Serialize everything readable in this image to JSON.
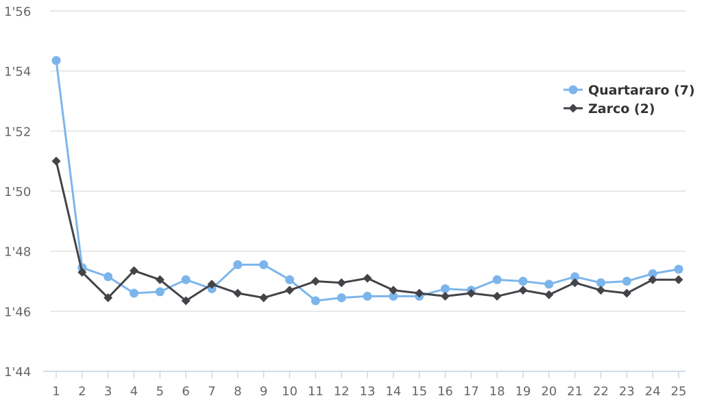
{
  "chart_data": {
    "type": "line",
    "title": "",
    "xlabel": "",
    "ylabel": "",
    "x": [
      1,
      2,
      3,
      4,
      5,
      6,
      7,
      8,
      9,
      10,
      11,
      12,
      13,
      14,
      15,
      16,
      17,
      18,
      19,
      20,
      21,
      22,
      23,
      24,
      25
    ],
    "ylim": [
      104,
      116
    ],
    "y_ticks": [
      104,
      106,
      108,
      110,
      112,
      114,
      116
    ],
    "y_tick_labels": [
      "1'44",
      "1'46",
      "1'48",
      "1'50",
      "1'52",
      "1'54",
      "1'56"
    ],
    "grid": "horizontal",
    "legend_position": "right",
    "series": [
      {
        "name": "Quartararo (7)",
        "color": "#7cb5ec",
        "marker": "circle",
        "values": [
          114.35,
          107.45,
          107.15,
          106.6,
          106.65,
          107.05,
          106.75,
          107.55,
          107.55,
          107.05,
          106.35,
          106.45,
          106.5,
          106.5,
          106.5,
          106.75,
          106.7,
          107.05,
          107.0,
          106.9,
          107.15,
          106.95,
          107.0,
          107.25,
          107.4
        ]
      },
      {
        "name": "Zarco (2)",
        "color": "#434348",
        "marker": "diamond",
        "values": [
          111.0,
          107.3,
          106.45,
          107.35,
          107.05,
          106.35,
          106.9,
          106.6,
          106.45,
          106.7,
          107.0,
          106.95,
          107.1,
          106.7,
          106.6,
          106.5,
          106.6,
          106.5,
          106.7,
          106.55,
          106.95,
          106.7,
          106.6,
          107.05,
          107.05
        ]
      }
    ]
  }
}
